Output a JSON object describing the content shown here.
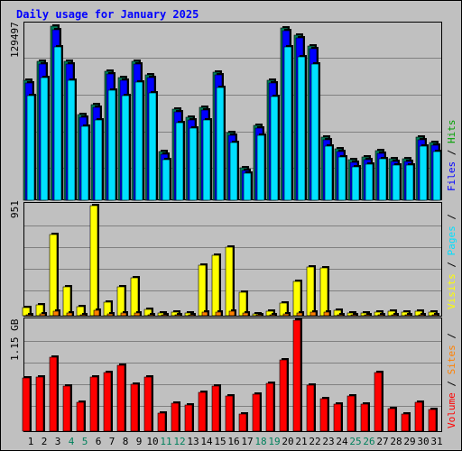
{
  "chart_data": [
    {
      "type": "bar",
      "title": "Daily usage for January 2025",
      "panel": "hits-files-pages",
      "ymax_label": "129497",
      "ymax": 129497,
      "categories": [
        "1",
        "2",
        "3",
        "4",
        "5",
        "6",
        "7",
        "8",
        "9",
        "10",
        "11",
        "12",
        "13",
        "14",
        "15",
        "16",
        "17",
        "18",
        "19",
        "20",
        "21",
        "22",
        "23",
        "24",
        "25",
        "26",
        "27",
        "28",
        "29",
        "30",
        "31"
      ],
      "weekend_days": [
        "4",
        "5",
        "11",
        "12",
        "18",
        "19",
        "25",
        "26"
      ],
      "series": [
        {
          "name": "Hits",
          "color": "#00805c",
          "values": [
            89000,
            103000,
            129497,
            103000,
            64000,
            71000,
            96000,
            91000,
            103000,
            93000,
            36000,
            68000,
            62000,
            69000,
            95000,
            50000,
            24000,
            56000,
            89000,
            128000,
            123000,
            115000,
            47000,
            38000,
            30000,
            32000,
            37000,
            31000,
            31000,
            47000,
            43000
          ]
        },
        {
          "name": "Files",
          "color": "#0000ff",
          "values": [
            87000,
            101000,
            127000,
            101000,
            62000,
            69000,
            94000,
            89000,
            101000,
            91000,
            34000,
            66000,
            60000,
            67000,
            93000,
            48000,
            22000,
            54000,
            87000,
            126000,
            121000,
            113000,
            45000,
            36000,
            28000,
            30000,
            35000,
            29000,
            29000,
            45000,
            41000
          ]
        },
        {
          "name": "Pages",
          "color": "#00e0ff",
          "values": [
            78000,
            91000,
            114000,
            89000,
            55000,
            60000,
            82000,
            78000,
            88000,
            80000,
            30000,
            58000,
            54000,
            60000,
            84000,
            43000,
            20000,
            48000,
            77000,
            114000,
            107000,
            101000,
            40000,
            32000,
            25000,
            27000,
            31000,
            26000,
            26000,
            40000,
            36000
          ]
        }
      ],
      "legend": [
        "Hits",
        "Files",
        "Pages"
      ]
    },
    {
      "type": "bar",
      "panel": "visits-sites",
      "ymax_label": "951",
      "ymax": 951,
      "series": [
        {
          "name": "Visits",
          "color": "#ffff00",
          "values": [
            70,
            90,
            700,
            250,
            75,
            951,
            120,
            250,
            330,
            55,
            20,
            35,
            20,
            440,
            520,
            590,
            200,
            15,
            40,
            110,
            300,
            420,
            410,
            50,
            25,
            25,
            30,
            40,
            35,
            40,
            30
          ]
        },
        {
          "name": "Sites",
          "color": "#ff8000",
          "values": [
            10,
            12,
            40,
            25,
            10,
            45,
            15,
            20,
            25,
            10,
            5,
            8,
            5,
            30,
            35,
            40,
            20,
            5,
            8,
            15,
            20,
            30,
            28,
            10,
            5,
            5,
            6,
            7,
            6,
            7,
            6
          ]
        }
      ],
      "legend": [
        "Visits",
        "Sites"
      ]
    },
    {
      "type": "bar",
      "panel": "volume",
      "ymax_label": "1.15 GB",
      "ymax": 1.15,
      "unit": "GB",
      "series": [
        {
          "name": "Volume",
          "color": "#ff0000",
          "values": [
            0.55,
            0.56,
            0.77,
            0.47,
            0.3,
            0.56,
            0.61,
            0.68,
            0.49,
            0.56,
            0.19,
            0.29,
            0.27,
            0.4,
            0.47,
            0.36,
            0.18,
            0.38,
            0.5,
            0.74,
            1.15,
            0.48,
            0.34,
            0.28,
            0.36,
            0.28,
            0.61,
            0.23,
            0.18,
            0.3,
            0.22
          ]
        }
      ],
      "legend": [
        "Volume"
      ]
    }
  ]
}
